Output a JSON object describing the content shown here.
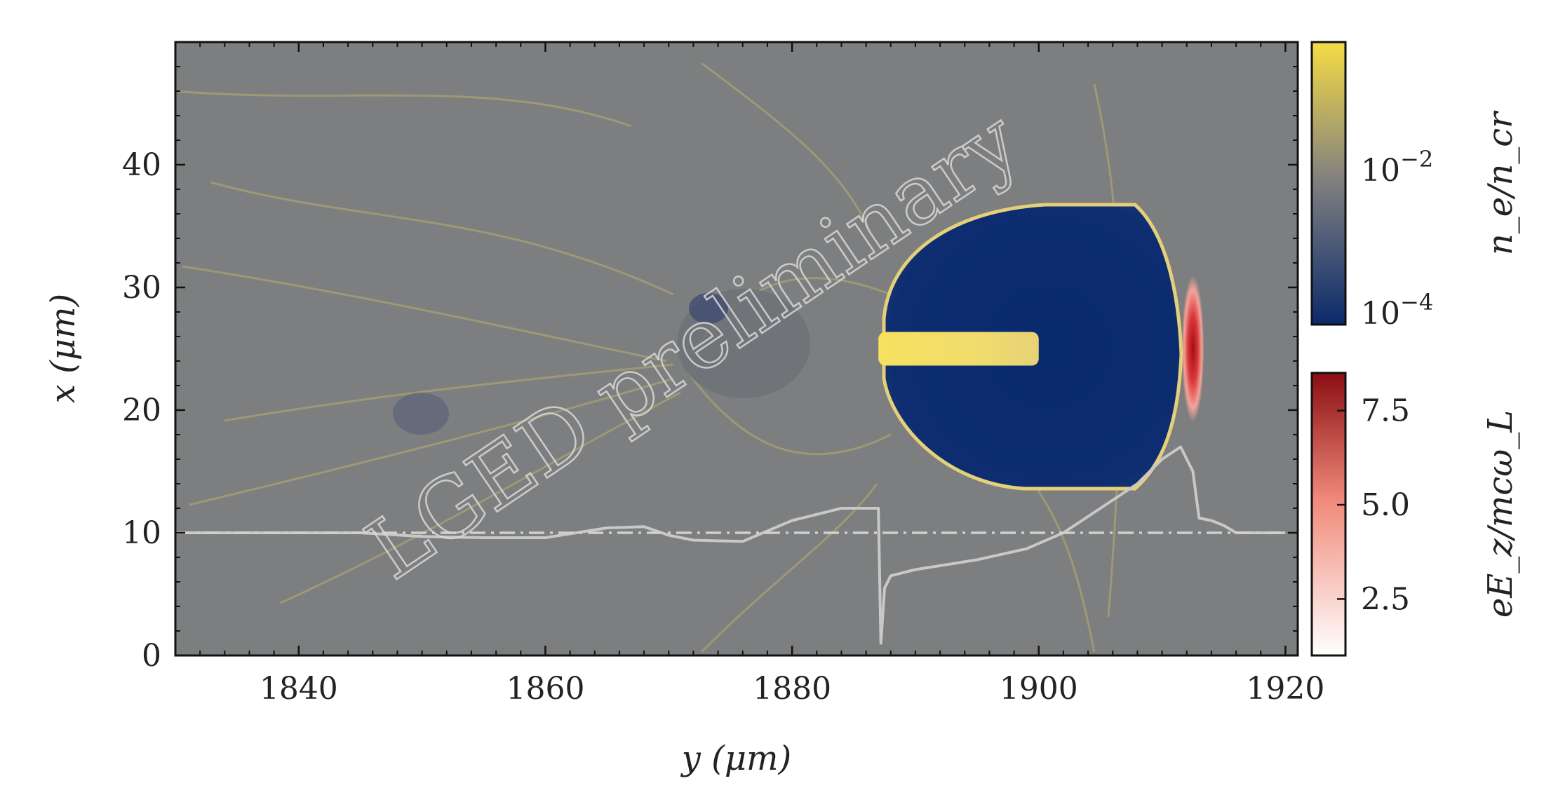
{
  "chart_data": {
    "type": "heatmap",
    "title": "",
    "xlabel": "y (μm)",
    "ylabel": "x (μm)",
    "xlim": [
      1830,
      1921
    ],
    "ylim": [
      0,
      50
    ],
    "x_ticks": [
      1840,
      1860,
      1880,
      1900,
      1920
    ],
    "y_ticks": [
      0,
      10,
      20,
      30,
      40
    ],
    "x_tick_labels": [
      "1840",
      "1860",
      "1880",
      "1900",
      "1920"
    ],
    "y_tick_labels": [
      "0",
      "10",
      "20",
      "30",
      "40"
    ],
    "watermark": "LGED preliminary",
    "density_colorbar": {
      "label": "n_e/n_cr",
      "scale": "log",
      "range": [
        0.0001,
        0.2
      ],
      "ticks": [
        "10^-2",
        "10^-4"
      ],
      "colors": [
        "#0b2a6b",
        "#7e7e80",
        "#f5dc45"
      ]
    },
    "field_colorbar": {
      "label": "eE_z/mcω_L",
      "range": [
        1,
        8.5
      ],
      "ticks": [
        "7.5",
        "5.0",
        "2.5"
      ],
      "tick_values": [
        7.5,
        5.0,
        2.5
      ],
      "colors": [
        "#ffffff",
        "#f08a7a",
        "#8a0d12"
      ]
    },
    "features": {
      "bubble": {
        "y_range": [
          1887,
          1909
        ],
        "x_range": [
          13,
          37
        ]
      },
      "electron_beam": {
        "y_range": [
          1887,
          1900
        ],
        "x_center": 25
      },
      "laser_pulse": {
        "y_center": 1912.5,
        "x_center": 25
      }
    },
    "series": [
      {
        "style": "solid",
        "color": "#c8c8c8",
        "x": [
          1830,
          1845,
          1850,
          1855,
          1860,
          1865,
          1868,
          1870,
          1872,
          1876,
          1880,
          1884,
          1886,
          1887,
          1887.2,
          1887.5,
          1888,
          1890,
          1895,
          1899,
          1902,
          1905,
          1908,
          1910,
          1911.5,
          1912.5,
          1913,
          1914,
          1915,
          1916,
          1917,
          1920
        ],
        "y": [
          10,
          10,
          9.7,
          9.6,
          9.6,
          10.4,
          10.5,
          9.8,
          9.4,
          9.3,
          11.0,
          12.0,
          12.0,
          12.0,
          1.0,
          5.5,
          6.5,
          7.0,
          7.8,
          8.7,
          10.0,
          12.0,
          14.0,
          16.0,
          17.0,
          15.0,
          11.2,
          11.0,
          10.6,
          10.0,
          10.0,
          10.0
        ]
      },
      {
        "style": "dash-dot",
        "color": "#d0d0d0",
        "x": [
          1830,
          1920
        ],
        "y": [
          10,
          10
        ]
      }
    ]
  }
}
